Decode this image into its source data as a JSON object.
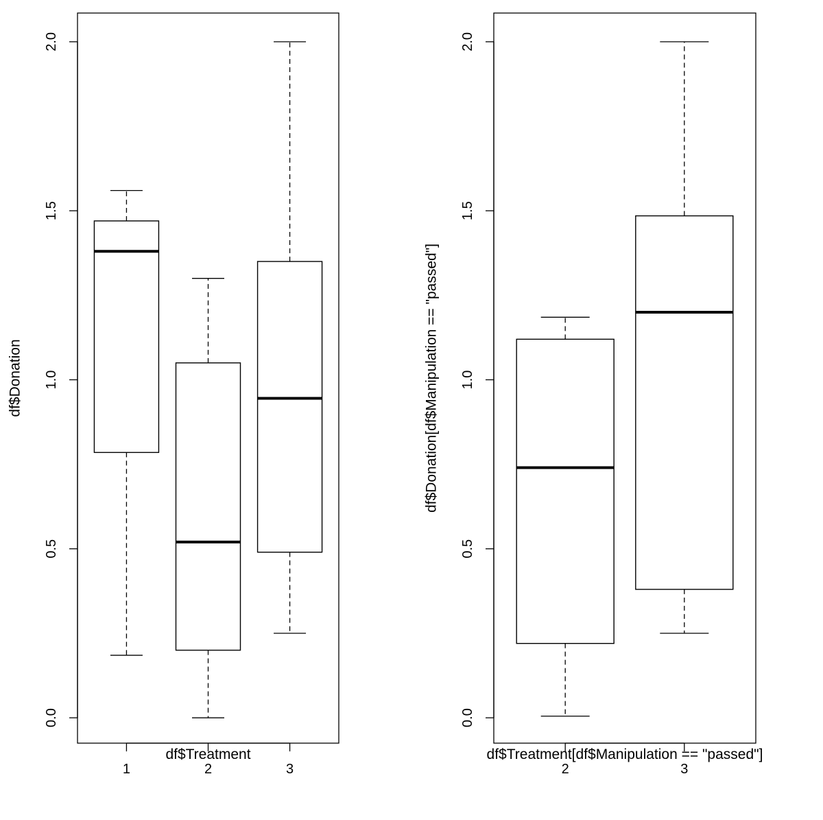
{
  "chart_data": [
    {
      "type": "boxplot",
      "title": "",
      "xlabel": "df$Treatment",
      "ylabel": "df$Donation",
      "ylim": [
        -0.075,
        2.085
      ],
      "yticks": [
        "0.0",
        "0.5",
        "1.0",
        "1.5",
        "2.0"
      ],
      "categories": [
        "1",
        "2",
        "3"
      ],
      "boxes": [
        {
          "category": "1",
          "whisker_low": 0.185,
          "q1": 0.785,
          "median": 1.38,
          "q3": 1.47,
          "whisker_high": 1.56
        },
        {
          "category": "2",
          "whisker_low": 0.0,
          "q1": 0.2,
          "median": 0.52,
          "q3": 1.05,
          "whisker_high": 1.3
        },
        {
          "category": "3",
          "whisker_low": 0.25,
          "q1": 0.49,
          "median": 0.945,
          "q3": 1.35,
          "whisker_high": 2.0
        }
      ],
      "grid": false,
      "legend": "none"
    },
    {
      "type": "boxplot",
      "title": "",
      "xlabel": "df$Treatment[df$Manipulation == \"passed\"]",
      "ylabel": "df$Donation[df$Manipulation == \"passed\"]",
      "ylim": [
        -0.075,
        2.085
      ],
      "yticks": [
        "0.0",
        "0.5",
        "1.0",
        "1.5",
        "2.0"
      ],
      "categories": [
        "2",
        "3"
      ],
      "boxes": [
        {
          "category": "2",
          "whisker_low": 0.005,
          "q1": 0.22,
          "median": 0.74,
          "q3": 1.12,
          "whisker_high": 1.185
        },
        {
          "category": "3",
          "whisker_low": 0.25,
          "q1": 0.38,
          "median": 1.2,
          "q3": 1.485,
          "whisker_high": 2.0
        }
      ],
      "grid": false,
      "legend": "none"
    }
  ]
}
